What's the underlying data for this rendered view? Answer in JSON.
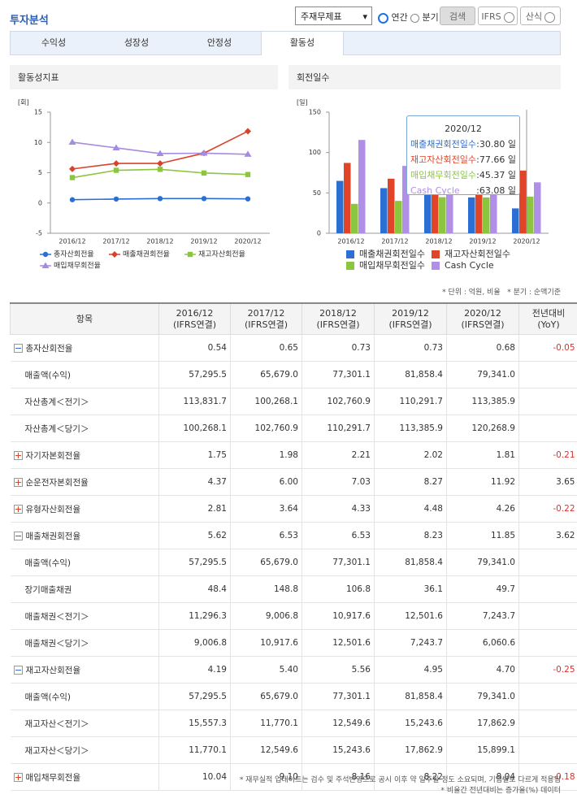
{
  "header": {
    "title": "투자분석",
    "select": "주재무제표",
    "radio_annual": "연간",
    "radio_quarter": "분기",
    "search": "검색",
    "ifrs": "IFRS",
    "formula": "산식"
  },
  "tabs": [
    "수익성",
    "성장성",
    "안정성",
    "활동성"
  ],
  "active_tab": 3,
  "chart_data": [
    {
      "type": "line",
      "title": "활동성지표",
      "unit": "[회]",
      "categories": [
        "2016/12",
        "2017/12",
        "2018/12",
        "2019/12",
        "2020/12"
      ],
      "ylim": [
        -5,
        15
      ],
      "yticks": [
        -5,
        0,
        5,
        10,
        15
      ],
      "series": [
        {
          "name": "총자산회전율",
          "color": "#2b6fd4",
          "marker": "circle",
          "values": [
            0.54,
            0.65,
            0.73,
            0.73,
            0.68
          ]
        },
        {
          "name": "매출채권회전율",
          "color": "#d8432b",
          "marker": "diamond",
          "values": [
            5.62,
            6.53,
            6.53,
            8.23,
            11.85
          ]
        },
        {
          "name": "재고자산회전율",
          "color": "#8cc63f",
          "marker": "square",
          "values": [
            4.19,
            5.4,
            5.56,
            4.95,
            4.7
          ]
        },
        {
          "name": "매입채무회전율",
          "color": "#a58ce0",
          "marker": "triangle",
          "values": [
            10.04,
            9.1,
            8.16,
            8.22,
            8.04
          ]
        }
      ]
    },
    {
      "type": "bar",
      "title": "회전일수",
      "unit": "[일]",
      "categories": [
        "2016/12",
        "2017/12",
        "2018/12",
        "2019/12",
        "2020/12"
      ],
      "ylim": [
        0,
        150
      ],
      "yticks": [
        0,
        50,
        100,
        150
      ],
      "series": [
        {
          "name": "매출채권회전일수",
          "color": "#2b6fd4",
          "values": [
            64.9,
            55.9,
            55.9,
            44.4,
            30.8
          ]
        },
        {
          "name": "재고자산회전일수",
          "color": "#e0452a",
          "values": [
            87.1,
            67.6,
            65.6,
            73.7,
            77.66
          ]
        },
        {
          "name": "매입채무회전일수",
          "color": "#8cc63f",
          "values": [
            36.4,
            40.1,
            44.7,
            44.4,
            45.37
          ]
        },
        {
          "name": "Cash Cycle",
          "color": "#b08fe6",
          "values": [
            115.6,
            83.4,
            76.8,
            73.7,
            63.08
          ]
        }
      ],
      "tooltip": {
        "title": "2020/12",
        "items": [
          {
            "name": "매출채권회전일수",
            "text": ":30.80 일"
          },
          {
            "name": "재고자산회전일수",
            "text": ":77.66 일"
          },
          {
            "name": "매입채무회전일수",
            "text": ":45.37 일"
          },
          {
            "name": "Cash Cycle",
            "text": ":63.08 일"
          }
        ]
      }
    }
  ],
  "notes": [
    "* 단위 : 억원, 비율",
    "* 분기 : 순액기준"
  ],
  "table": {
    "headers": [
      {
        "period": "항목"
      },
      {
        "period": "2016/12",
        "basis": "(IFRS연결)"
      },
      {
        "period": "2017/12",
        "basis": "(IFRS연결)"
      },
      {
        "period": "2018/12",
        "basis": "(IFRS연결)"
      },
      {
        "period": "2019/12",
        "basis": "(IFRS연결)"
      },
      {
        "period": "2020/12",
        "basis": "(IFRS연결)"
      },
      {
        "period": "전년대비",
        "basis": "(YoY)"
      }
    ],
    "rows": [
      {
        "name": "총자산회전율",
        "expanded": true,
        "values": [
          "0.54",
          "0.65",
          "0.73",
          "0.73",
          "0.68"
        ],
        "yoy": "-0.05"
      },
      {
        "name": "매출액(수익)",
        "values": [
          "57,295.5",
          "65,679.0",
          "77,301.1",
          "81,858.4",
          "79,341.0"
        ]
      },
      {
        "name": "자산총계＜전기＞",
        "values": [
          "113,831.7",
          "100,268.1",
          "102,760.9",
          "110,291.7",
          "113,385.9"
        ]
      },
      {
        "name": "자산총계＜당기＞",
        "values": [
          "100,268.1",
          "102,760.9",
          "110,291.7",
          "113,385.9",
          "120,268.9"
        ]
      },
      {
        "name": "자기자본회전율",
        "expanded": false,
        "values": [
          "1.75",
          "1.98",
          "2.21",
          "2.02",
          "1.81"
        ],
        "yoy": "-0.21"
      },
      {
        "name": "순운전자본회전율",
        "expanded": false,
        "values": [
          "4.37",
          "6.00",
          "7.03",
          "8.27",
          "11.92"
        ],
        "yoy": "3.65"
      },
      {
        "name": "유형자산회전율",
        "expanded": false,
        "values": [
          "2.81",
          "3.64",
          "4.33",
          "4.48",
          "4.26"
        ],
        "yoy": "-0.22"
      },
      {
        "name": "매출채권회전율",
        "expanded": true,
        "values": [
          "5.62",
          "6.53",
          "6.53",
          "8.23",
          "11.85"
        ],
        "yoy": "3.62"
      },
      {
        "name": "매출액(수익)",
        "values": [
          "57,295.5",
          "65,679.0",
          "77,301.1",
          "81,858.4",
          "79,341.0"
        ]
      },
      {
        "name": "장기매출채권",
        "values": [
          "48.4",
          "148.8",
          "106.8",
          "36.1",
          "49.7"
        ]
      },
      {
        "name": "매출채권＜전기＞",
        "values": [
          "11,296.3",
          "9,006.8",
          "10,917.6",
          "12,501.6",
          "7,243.7"
        ]
      },
      {
        "name": "매출채권＜당기＞",
        "values": [
          "9,006.8",
          "10,917.6",
          "12,501.6",
          "7,243.7",
          "6,060.6"
        ]
      },
      {
        "name": "재고자산회전율",
        "expanded": true,
        "values": [
          "4.19",
          "5.40",
          "5.56",
          "4.95",
          "4.70"
        ],
        "yoy": "-0.25"
      },
      {
        "name": "매출액(수익)",
        "values": [
          "57,295.5",
          "65,679.0",
          "77,301.1",
          "81,858.4",
          "79,341.0"
        ]
      },
      {
        "name": "재고자산＜전기＞",
        "values": [
          "15,557.3",
          "11,770.1",
          "12,549.6",
          "15,243.6",
          "17,862.9"
        ]
      },
      {
        "name": "재고자산＜당기＞",
        "values": [
          "11,770.1",
          "12,549.6",
          "15,243.6",
          "17,862.9",
          "15,899.1"
        ]
      },
      {
        "name": "매입채무회전율",
        "expanded": false,
        "values": [
          "10.04",
          "9.10",
          "8.16",
          "8.22",
          "8.04"
        ],
        "yoy": "-0.18"
      }
    ]
  },
  "footer": [
    "* 재무실적 업데이트는 검수 및 주석반영으로 공시 이후 약 일주일 정도 소요되며, 기업별로 다르게 적용됨",
    "* 비율간 전년대비는 증가율(%) 데이터"
  ]
}
